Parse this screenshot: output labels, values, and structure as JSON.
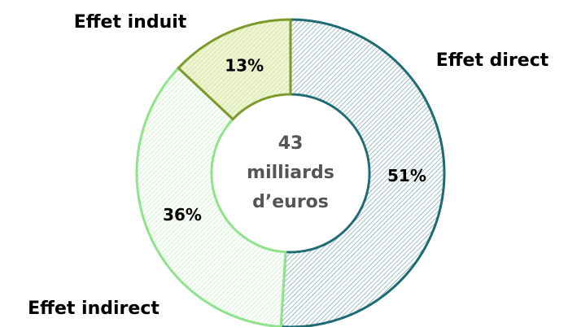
{
  "chart_data": {
    "type": "donut",
    "categories": [
      "Effet direct",
      "Effet indirect",
      "Effet induit"
    ],
    "values": [
      51,
      36,
      13
    ],
    "value_labels": [
      "51%",
      "36%",
      "13%"
    ],
    "colors": [
      "#1f6b73",
      "#8fe38a",
      "#7a9a2a"
    ],
    "center_label": [
      "43",
      "milliards",
      "d’euros"
    ]
  }
}
